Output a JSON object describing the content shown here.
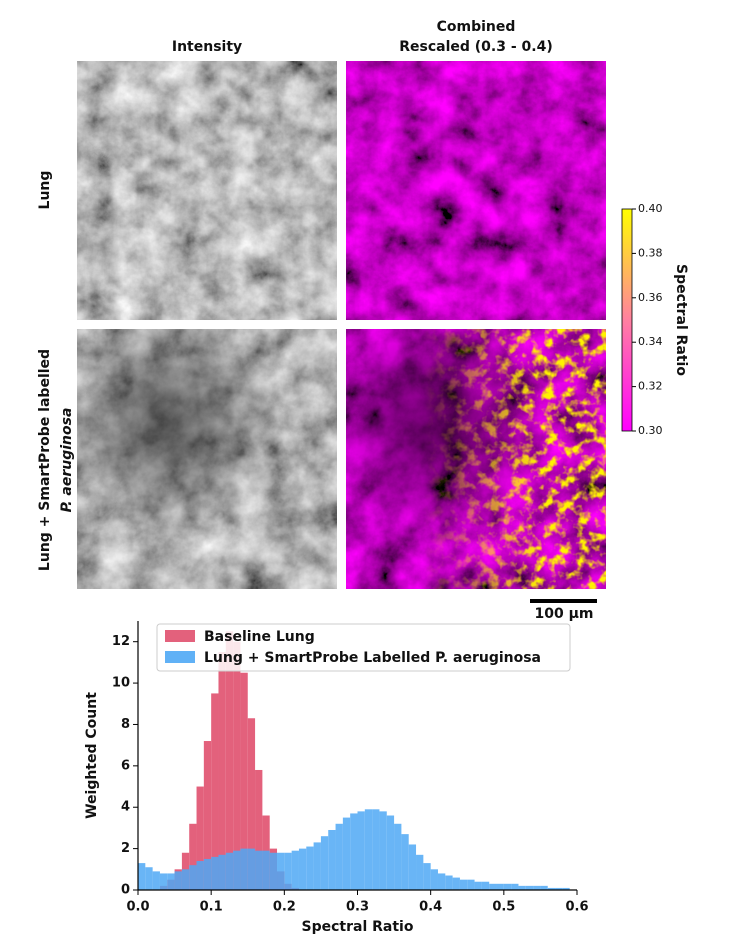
{
  "panels": {
    "column_titles": [
      [
        "Intensity"
      ],
      [
        "Combined",
        "Rescaled (0.3 - 0.4)"
      ]
    ],
    "row_labels": [
      [
        "Lung"
      ],
      [
        "Lung + SmartProbe labelled",
        "P. aeruginosa"
      ]
    ],
    "scale_bar": "100 µm"
  },
  "colorbar": {
    "label": "Spectral Ratio",
    "lim": [
      0.3,
      0.4
    ],
    "ticks": [
      {
        "value": 0.3,
        "label": "0.30"
      },
      {
        "value": 0.32,
        "label": "0.32"
      },
      {
        "value": 0.34,
        "label": "0.34"
      },
      {
        "value": 0.36,
        "label": "0.36"
      },
      {
        "value": 0.38,
        "label": "0.38"
      },
      {
        "value": 0.4,
        "label": "0.40"
      }
    ],
    "colors": [
      "#ff00ff",
      "#ff80a0",
      "#ffff00"
    ]
  },
  "chart_data": {
    "type": "histogram",
    "xlabel": "Spectral Ratio",
    "ylabel": "Weighted Count",
    "bins": [
      0,
      0.01,
      0.02,
      0.03,
      0.04,
      0.05,
      0.06,
      0.07,
      0.08,
      0.09,
      0.1,
      0.11,
      0.12,
      0.13,
      0.14,
      0.15,
      0.16,
      0.17,
      0.18,
      0.19,
      0.2,
      0.21,
      0.22,
      0.23,
      0.24,
      0.25,
      0.26,
      0.27,
      0.28,
      0.29,
      0.3,
      0.31,
      0.32,
      0.33,
      0.34,
      0.35,
      0.36,
      0.37,
      0.38,
      0.39,
      0.4,
      0.41,
      0.42,
      0.43,
      0.44,
      0.45,
      0.46,
      0.47,
      0.48,
      0.49,
      0.5,
      0.51,
      0.52,
      0.53,
      0.54,
      0.55,
      0.56,
      0.57,
      0.58,
      0.59,
      0.6
    ],
    "series": [
      {
        "name": "Baseline Lung",
        "color": "#e0506e",
        "values": [
          0,
          0,
          0,
          0.2,
          0.5,
          1.0,
          1.8,
          3.2,
          5.0,
          7.2,
          9.5,
          11.5,
          12.5,
          12.0,
          10.5,
          8.3,
          5.8,
          3.6,
          2.0,
          0.9,
          0.3,
          0.1,
          0,
          0,
          0,
          0,
          0,
          0,
          0,
          0,
          0,
          0,
          0,
          0,
          0,
          0,
          0,
          0,
          0,
          0,
          0,
          0,
          0,
          0,
          0,
          0,
          0,
          0,
          0,
          0,
          0,
          0,
          0,
          0,
          0,
          0,
          0,
          0,
          0,
          0
        ]
      },
      {
        "name": "Lung + SmartProbe Labelled P. aeruginosa",
        "color": "#4fa8f5",
        "values": [
          1.3,
          1.1,
          0.9,
          0.8,
          0.8,
          0.9,
          1.0,
          1.2,
          1.4,
          1.5,
          1.6,
          1.7,
          1.8,
          1.9,
          2.0,
          2.0,
          1.9,
          1.9,
          1.8,
          1.8,
          1.8,
          1.9,
          2.0,
          2.1,
          2.3,
          2.6,
          2.9,
          3.2,
          3.5,
          3.7,
          3.8,
          3.9,
          3.9,
          3.8,
          3.6,
          3.2,
          2.7,
          2.2,
          1.7,
          1.3,
          1.0,
          0.8,
          0.7,
          0.6,
          0.5,
          0.5,
          0.4,
          0.4,
          0.3,
          0.3,
          0.3,
          0.3,
          0.2,
          0.2,
          0.2,
          0.2,
          0.1,
          0.1,
          0.1,
          0.0
        ]
      }
    ],
    "xlim": [
      0,
      0.6
    ],
    "ylim": [
      0,
      13
    ],
    "xticks": [
      {
        "value": 0,
        "label": "0.0"
      },
      0.1,
      0.2,
      0.3,
      0.4,
      0.5,
      0.6
    ],
    "yticks": [
      0,
      2,
      4,
      6,
      8,
      10,
      12
    ],
    "legend": "upper right"
  }
}
